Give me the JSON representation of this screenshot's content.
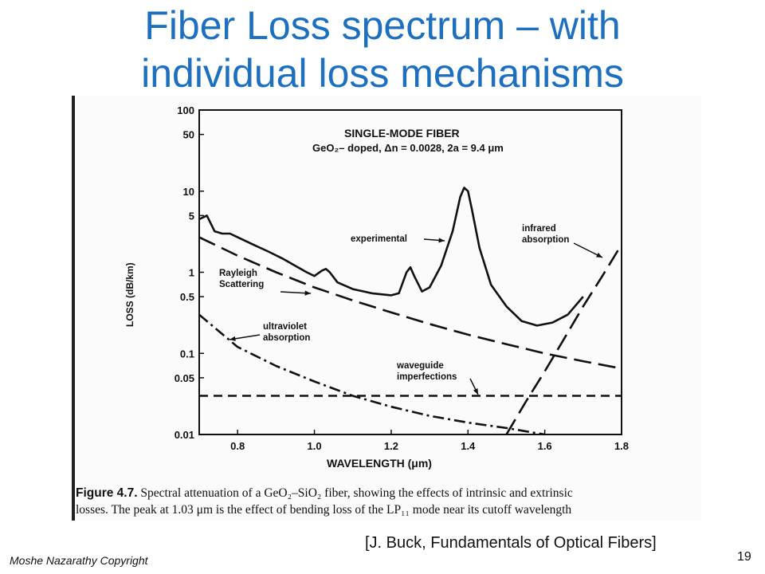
{
  "slide": {
    "title_line1": "Fiber Loss spectrum – with",
    "title_line2": "individual loss mechanisms",
    "citation": "[J. Buck, Fundamentals of Optical Fibers]",
    "copyright": "Moshe Nazarathy Copyright",
    "page_number": "19"
  },
  "figure": {
    "caption_label": "Figure 4.7.",
    "caption_line1": "Spectral attenuation of a GeO₂–SiO₂ fiber, showing the effects of intrinsic and extrinsic",
    "caption_line2": "losses. The peak at 1.03 μm is the effect of bending loss of the LP₁₁ mode near its cutoff wavelength"
  },
  "chart_data": {
    "type": "line",
    "title": "SINGLE-MODE FIBER",
    "subtitle": "GeO₂– doped, Δn = 0.0028, 2a = 9.4 μm",
    "xlabel": "WAVELENGTH (μm)",
    "ylabel": "LOSS (dB/km)",
    "xlim": [
      0.7,
      1.8
    ],
    "ylim": [
      0.01,
      100
    ],
    "yscale": "log",
    "x_ticks": [
      0.8,
      1.0,
      1.2,
      1.4,
      1.6,
      1.8
    ],
    "x_tick_labels": [
      "0.8",
      "1.0",
      "1.2",
      "1.4",
      "1.6",
      "1.8"
    ],
    "y_ticks": [
      100,
      50,
      10,
      5,
      1,
      0.5,
      0.1,
      0.05,
      0.01
    ],
    "y_tick_labels": [
      "100",
      "50",
      "10",
      "5",
      "1",
      "0.5",
      "0.1",
      "0.05",
      "0.01"
    ],
    "grid": false,
    "series": [
      {
        "name": "experimental",
        "style": "solid",
        "x": [
          0.7,
          0.72,
          0.74,
          0.76,
          0.78,
          0.8,
          0.84,
          0.88,
          0.92,
          0.95,
          0.98,
          1.0,
          1.02,
          1.03,
          1.04,
          1.06,
          1.1,
          1.15,
          1.2,
          1.22,
          1.24,
          1.25,
          1.26,
          1.28,
          1.3,
          1.33,
          1.36,
          1.38,
          1.39,
          1.4,
          1.41,
          1.43,
          1.46,
          1.5,
          1.54,
          1.58,
          1.62,
          1.66,
          1.7
        ],
        "y": [
          4.5,
          5.0,
          3.2,
          3.0,
          3.0,
          2.7,
          2.2,
          1.8,
          1.45,
          1.2,
          1.0,
          0.9,
          1.05,
          1.1,
          1.0,
          0.75,
          0.62,
          0.55,
          0.52,
          0.55,
          1.0,
          1.15,
          0.9,
          0.58,
          0.65,
          1.2,
          3.2,
          8.5,
          11,
          10,
          6.0,
          2.0,
          0.7,
          0.38,
          0.25,
          0.22,
          0.24,
          0.3,
          0.5
        ]
      },
      {
        "name": "Rayleigh Scattering",
        "style": "long-dash",
        "x": [
          0.7,
          0.8,
          0.9,
          1.0,
          1.1,
          1.2,
          1.3,
          1.4,
          1.5,
          1.6,
          1.7,
          1.8
        ],
        "y": [
          2.7,
          1.6,
          1.0,
          0.65,
          0.45,
          0.32,
          0.23,
          0.17,
          0.13,
          0.1,
          0.08,
          0.065
        ]
      },
      {
        "name": "ultraviolet absorption",
        "style": "dash-dot",
        "x": [
          0.7,
          0.8,
          0.9,
          1.0,
          1.1,
          1.2,
          1.3,
          1.4,
          1.5,
          1.6
        ],
        "y": [
          0.3,
          0.12,
          0.07,
          0.045,
          0.03,
          0.022,
          0.017,
          0.014,
          0.012,
          0.01
        ]
      },
      {
        "name": "waveguide imperfections",
        "style": "dashed",
        "x": [
          0.7,
          1.8
        ],
        "y": [
          0.03,
          0.03
        ]
      },
      {
        "name": "infrared absorption",
        "style": "long-dash",
        "x": [
          1.5,
          1.55,
          1.6,
          1.65,
          1.7,
          1.75,
          1.8
        ],
        "y": [
          0.01,
          0.025,
          0.06,
          0.15,
          0.38,
          0.9,
          2.2
        ]
      }
    ]
  }
}
